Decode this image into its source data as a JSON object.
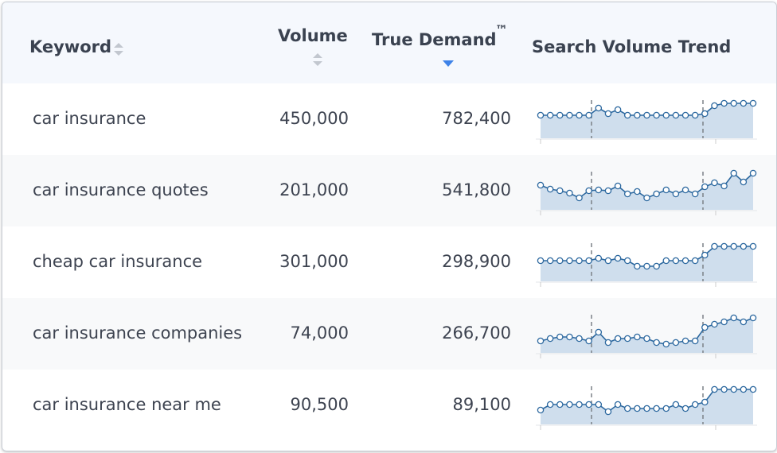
{
  "table": {
    "headers": {
      "keyword": "Keyword",
      "volume": "Volume",
      "true_demand": "True Demand",
      "trademark": "™",
      "trend": "Search Volume Trend"
    },
    "rows": [
      {
        "keyword": "car insurance",
        "volume": "450,000",
        "true_demand": "782,400",
        "trend": [
          29,
          29,
          29,
          29,
          29,
          29,
          38,
          31,
          36,
          29,
          29,
          29,
          29,
          29,
          29,
          29,
          29,
          31,
          41,
          44,
          44,
          44,
          44
        ]
      },
      {
        "keyword": "car insurance quotes",
        "volume": "201,000",
        "true_demand": "541,800",
        "trend": [
          31,
          26,
          24,
          21,
          15,
          24,
          25,
          24,
          30,
          20,
          23,
          15,
          20,
          25,
          20,
          25,
          20,
          29,
          34,
          30,
          46,
          35,
          46
        ]
      },
      {
        "keyword": "cheap car insurance",
        "volume": "301,000",
        "true_demand": "298,900",
        "trend": [
          26,
          26,
          26,
          26,
          26,
          26,
          29,
          26,
          29,
          26,
          19,
          19,
          19,
          26,
          26,
          26,
          26,
          33,
          44,
          44,
          44,
          44,
          44
        ]
      },
      {
        "keyword": "car insurance companies",
        "volume": "74,000",
        "true_demand": "266,700",
        "trend": [
          15,
          18,
          20,
          20,
          18,
          15,
          26,
          13,
          18,
          18,
          20,
          18,
          13,
          11,
          13,
          15,
          15,
          32,
          36,
          39,
          44,
          39,
          44
        ]
      },
      {
        "keyword": "car insurance near me",
        "volume": "90,500",
        "true_demand": "89,100",
        "trend": [
          18,
          25,
          25,
          25,
          25,
          25,
          25,
          16,
          25,
          20,
          20,
          20,
          20,
          20,
          25,
          20,
          25,
          28,
          44,
          44,
          44,
          44,
          44
        ]
      }
    ]
  }
}
